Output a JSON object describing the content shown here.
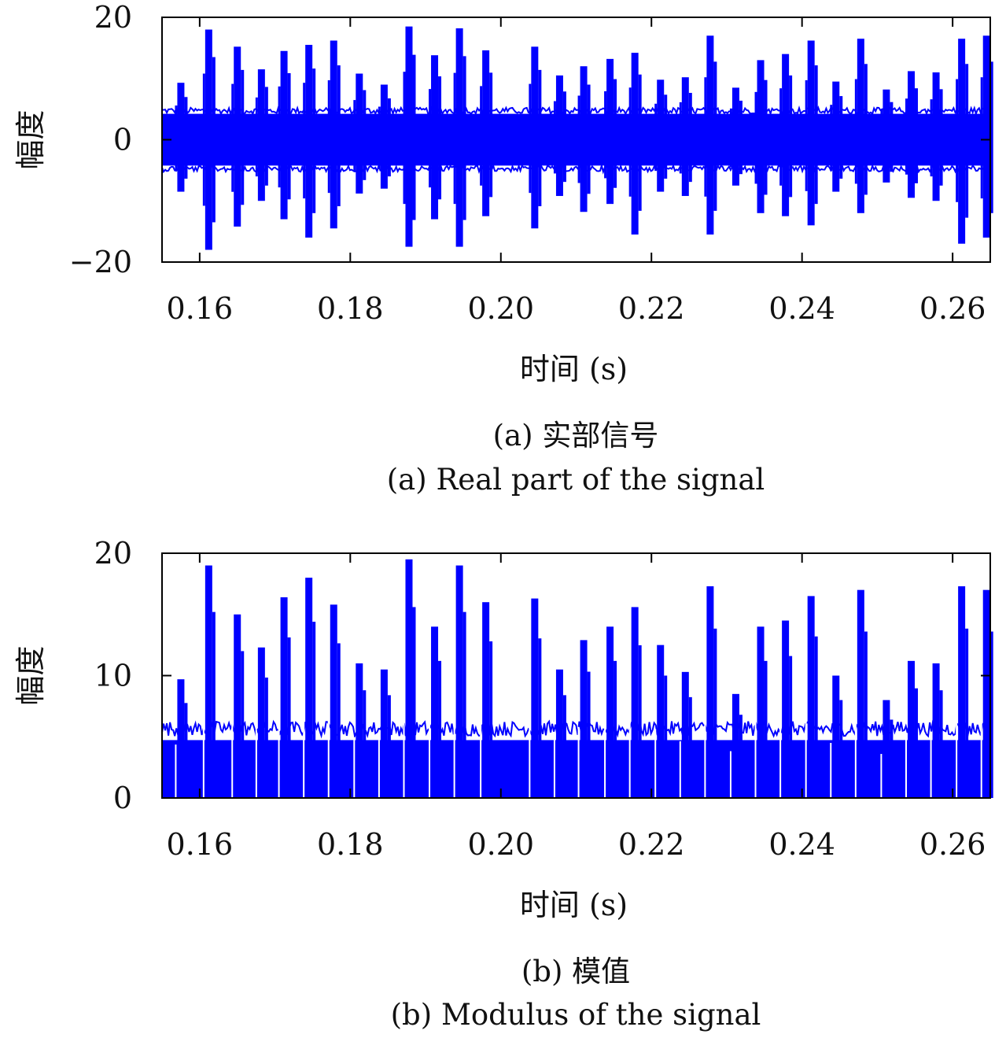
{
  "colors": {
    "signal": "#0000ff",
    "axis": "#000000",
    "text": "#111111"
  },
  "chart_data": [
    {
      "type": "line",
      "caption_cn": "(a) 实部信号",
      "caption_en": "(a) Real part of the signal",
      "xlabel": "时间 (s)",
      "ylabel": "幅度",
      "xlim": [
        0.155,
        0.265
      ],
      "ylim": [
        -20,
        20
      ],
      "xticks": [
        0.16,
        0.18,
        0.2,
        0.22,
        0.24,
        0.26
      ],
      "xtick_labels": [
        "0.16",
        "0.18",
        "0.20",
        "0.22",
        "0.24",
        "0.26"
      ],
      "yticks": [
        -20,
        0,
        20
      ],
      "ytick_labels": [
        "−20",
        "0",
        "20"
      ],
      "grid": false,
      "noise_floor": 4.6,
      "series": [
        {
          "pulses": [
            {
              "t": 0.1575,
              "top": 9.3,
              "bottom": -8.5
            },
            {
              "t": 0.1612,
              "top": 18.0,
              "bottom": -18.0
            },
            {
              "t": 0.165,
              "top": 15.2,
              "bottom": -14.2
            },
            {
              "t": 0.1682,
              "top": 11.5,
              "bottom": -10.0
            },
            {
              "t": 0.1712,
              "top": 14.5,
              "bottom": -13.0
            },
            {
              "t": 0.1745,
              "top": 15.5,
              "bottom": -16.0
            },
            {
              "t": 0.1778,
              "top": 16.2,
              "bottom": -14.5
            },
            {
              "t": 0.1812,
              "top": 10.8,
              "bottom": -8.8
            },
            {
              "t": 0.1845,
              "top": 9.0,
              "bottom": -8.0
            },
            {
              "t": 0.1878,
              "top": 18.5,
              "bottom": -17.5
            },
            {
              "t": 0.1912,
              "top": 13.8,
              "bottom": -13.0
            },
            {
              "t": 0.1945,
              "top": 18.2,
              "bottom": -17.5
            },
            {
              "t": 0.198,
              "top": 14.6,
              "bottom": -12.5
            },
            {
              "t": 0.2045,
              "top": 15.2,
              "bottom": -14.5
            },
            {
              "t": 0.2078,
              "top": 10.5,
              "bottom": -9.2
            },
            {
              "t": 0.211,
              "top": 12.0,
              "bottom": -11.8
            },
            {
              "t": 0.2145,
              "top": 13.2,
              "bottom": -10.5
            },
            {
              "t": 0.2178,
              "top": 14.2,
              "bottom": -15.5
            },
            {
              "t": 0.2212,
              "top": 9.8,
              "bottom": -8.5
            },
            {
              "t": 0.2245,
              "top": 10.2,
              "bottom": -9.2
            },
            {
              "t": 0.2278,
              "top": 17.0,
              "bottom": -15.5
            },
            {
              "t": 0.2312,
              "top": 8.5,
              "bottom": -7.5
            },
            {
              "t": 0.2345,
              "top": 13.0,
              "bottom": -12.0
            },
            {
              "t": 0.2378,
              "top": 14.0,
              "bottom": -12.5
            },
            {
              "t": 0.2412,
              "top": 16.2,
              "bottom": -14.0
            },
            {
              "t": 0.2445,
              "top": 9.5,
              "bottom": -8.5
            },
            {
              "t": 0.2478,
              "top": 16.5,
              "bottom": -12.0
            },
            {
              "t": 0.2512,
              "top": 8.2,
              "bottom": -7.0
            },
            {
              "t": 0.2545,
              "top": 11.2,
              "bottom": -9.5
            },
            {
              "t": 0.2578,
              "top": 11.0,
              "bottom": -10.0
            },
            {
              "t": 0.2612,
              "top": 16.5,
              "bottom": -17.0
            },
            {
              "t": 0.2645,
              "top": 17.0,
              "bottom": -16.0
            }
          ]
        }
      ]
    },
    {
      "type": "line",
      "caption_cn": "(b) 模值",
      "caption_en": "(b) Modulus of the signal",
      "xlabel": "时间 (s)",
      "ylabel": "幅度",
      "xlim": [
        0.155,
        0.265
      ],
      "ylim": [
        0,
        20
      ],
      "xticks": [
        0.16,
        0.18,
        0.2,
        0.22,
        0.24,
        0.26
      ],
      "xtick_labels": [
        "0.16",
        "0.18",
        "0.20",
        "0.22",
        "0.24",
        "0.26"
      ],
      "yticks": [
        0,
        10,
        20
      ],
      "ytick_labels": [
        "0",
        "10",
        "20"
      ],
      "grid": false,
      "noise_floor": 5.5,
      "series": [
        {
          "pulses": [
            {
              "t": 0.1575,
              "top": 9.7
            },
            {
              "t": 0.1612,
              "top": 19.0
            },
            {
              "t": 0.165,
              "top": 15.0
            },
            {
              "t": 0.1682,
              "top": 12.3
            },
            {
              "t": 0.1712,
              "top": 16.4
            },
            {
              "t": 0.1745,
              "top": 18.0
            },
            {
              "t": 0.1778,
              "top": 15.8
            },
            {
              "t": 0.1812,
              "top": 11.0
            },
            {
              "t": 0.1845,
              "top": 10.5
            },
            {
              "t": 0.1878,
              "top": 19.5
            },
            {
              "t": 0.1912,
              "top": 14.0
            },
            {
              "t": 0.1945,
              "top": 19.0
            },
            {
              "t": 0.198,
              "top": 16.0
            },
            {
              "t": 0.2045,
              "top": 16.3
            },
            {
              "t": 0.2078,
              "top": 10.5
            },
            {
              "t": 0.211,
              "top": 12.9
            },
            {
              "t": 0.2145,
              "top": 14.0
            },
            {
              "t": 0.2178,
              "top": 15.6
            },
            {
              "t": 0.2212,
              "top": 12.5
            },
            {
              "t": 0.2245,
              "top": 10.3
            },
            {
              "t": 0.2278,
              "top": 17.3
            },
            {
              "t": 0.2312,
              "top": 8.5
            },
            {
              "t": 0.2345,
              "top": 14.0
            },
            {
              "t": 0.2378,
              "top": 14.5
            },
            {
              "t": 0.2412,
              "top": 16.5
            },
            {
              "t": 0.2445,
              "top": 10.0
            },
            {
              "t": 0.2478,
              "top": 17.0
            },
            {
              "t": 0.2512,
              "top": 8.0
            },
            {
              "t": 0.2545,
              "top": 11.2
            },
            {
              "t": 0.2578,
              "top": 11.0
            },
            {
              "t": 0.2612,
              "top": 17.3
            },
            {
              "t": 0.2645,
              "top": 17.0
            }
          ]
        }
      ]
    }
  ]
}
